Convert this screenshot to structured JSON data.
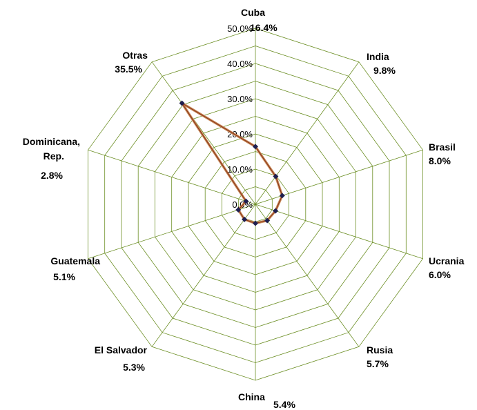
{
  "chart_data": {
    "type": "radar",
    "categories": [
      "Cuba",
      "India",
      "Brasil",
      "Ucrania",
      "Rusia",
      "China",
      "El Salvador",
      "Guatemala",
      "Dominicana, Rep.",
      "Otras"
    ],
    "value_labels": [
      "16.4%",
      "9.8%",
      "8.0%",
      "6.0%",
      "5.7%",
      "5.4%",
      "5.3%",
      "5.1%",
      "2.8%",
      "35.5%"
    ],
    "values": [
      16.4,
      9.8,
      8.0,
      6.0,
      5.7,
      5.4,
      5.3,
      5.1,
      2.8,
      35.5
    ],
    "r_ticks": [
      "0.0%",
      "10.0%",
      "20.0%",
      "30.0%",
      "40.0%",
      "50.0%"
    ],
    "r_range": [
      0,
      50
    ],
    "grid": true,
    "colors": {
      "grid": "#6b8e23",
      "series_line": "#c98a5a",
      "series_line_dark": "#8b3a1a",
      "marker": "#1f1f4f"
    }
  }
}
